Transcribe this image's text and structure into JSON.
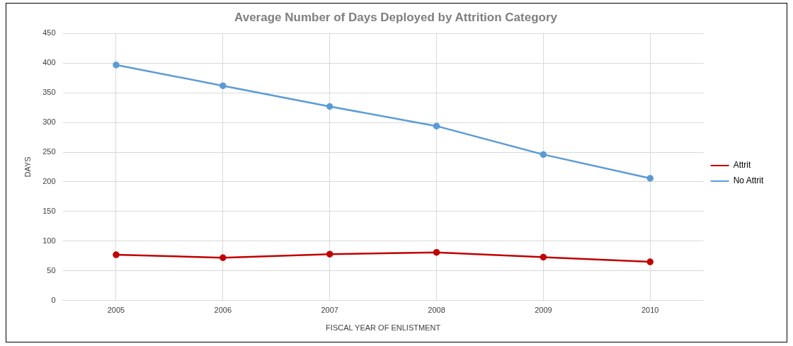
{
  "chart_data": {
    "type": "line",
    "title": "Average Number of Days Deployed by Attrition Category",
    "xlabel": "FISCAL YEAR OF ENLISTMENT",
    "ylabel": "DAYS",
    "categories": [
      "2005",
      "2006",
      "2007",
      "2008",
      "2009",
      "2010"
    ],
    "series": [
      {
        "name": "Attrit",
        "color": "#c00000",
        "values": [
          77,
          72,
          78,
          81,
          73,
          65
        ]
      },
      {
        "name": "No Attrit",
        "color": "#5b9bd5",
        "values": [
          397,
          362,
          327,
          294,
          246,
          206
        ]
      }
    ],
    "ylim": [
      0,
      450
    ],
    "yticks": [
      0,
      50,
      100,
      150,
      200,
      250,
      300,
      350,
      400,
      450
    ],
    "grid": true,
    "legend": "right",
    "marker": "circle",
    "line_style": "solid"
  }
}
